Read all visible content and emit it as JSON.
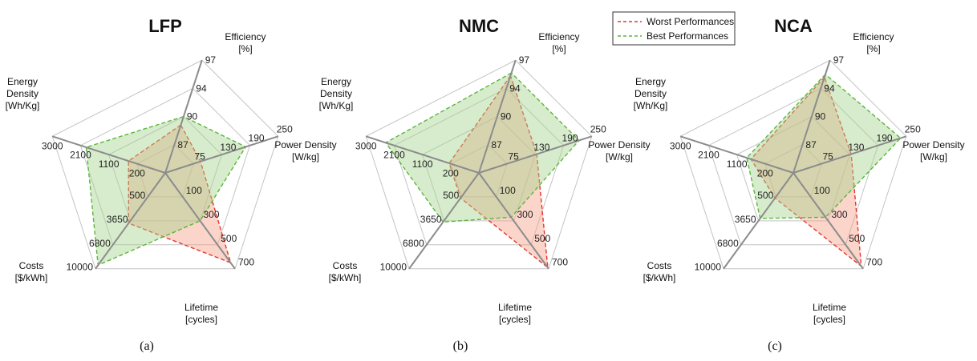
{
  "legend": {
    "worst_label": "Worst Performances",
    "best_label": "Best Performances",
    "worst_color": "#e8342c",
    "best_color": "#5ab63b",
    "worst_fill": "#f6a08a",
    "best_fill": "#a7d48e",
    "placement": "top-center"
  },
  "chart_data": [
    {
      "type": "radar",
      "title": "LFP",
      "caption": "(a)",
      "axes": [
        {
          "label": [
            "Efficiency",
            "[%]"
          ],
          "ticks": [
            "87",
            "90",
            "94",
            "97"
          ]
        },
        {
          "label": [
            "Power Density",
            "[W/kg]"
          ],
          "ticks": [
            "200",
            "1100",
            "2100",
            "3000"
          ]
        },
        {
          "label": [
            "Lifetime",
            "[cycles]"
          ],
          "ticks": [
            "500",
            "3650",
            "6800",
            "10000"
          ]
        },
        {
          "label": [
            "Costs",
            "[$/kWh]"
          ],
          "ticks": [
            "100",
            "300",
            "500",
            "700"
          ]
        },
        {
          "label": [
            "Energy",
            "Density",
            "[Wh/Kg]"
          ],
          "ticks": [
            "75",
            "130",
            "190",
            "250"
          ]
        }
      ],
      "series": [
        {
          "name": "Worst Performances",
          "levels": [
            1.7,
            1.3,
            2.1,
            3.75,
            1.25
          ]
        },
        {
          "name": "Best Performances",
          "levels": [
            2.0,
            2.8,
            3.85,
            2.0,
            2.85
          ]
        }
      ]
    },
    {
      "type": "radar",
      "title": "NMC",
      "caption": "(b)",
      "axes": [
        {
          "label": [
            "Efficiency",
            "[%]"
          ],
          "ticks": [
            "87",
            "90",
            "94",
            "97"
          ]
        },
        {
          "label": [
            "Power Density",
            "[W/kg]"
          ],
          "ticks": [
            "200",
            "1100",
            "2100",
            "3000"
          ]
        },
        {
          "label": [
            "Lifetime",
            "[cycles]"
          ],
          "ticks": [
            "500",
            "3650",
            "6800",
            "10000"
          ]
        },
        {
          "label": [
            "Costs",
            "[$/kWh]"
          ],
          "ticks": [
            "100",
            "300",
            "500",
            "700"
          ]
        },
        {
          "label": [
            "Energy",
            "Density",
            "[Wh/Kg]"
          ],
          "ticks": [
            "75",
            "130",
            "190",
            "250"
          ]
        }
      ],
      "series": [
        {
          "name": "Worst Performances",
          "levels": [
            3.45,
            1.05,
            1.05,
            3.95,
            2.05
          ]
        },
        {
          "name": "Best Performances",
          "levels": [
            3.55,
            3.3,
            2.05,
            1.85,
            3.55
          ]
        }
      ]
    },
    {
      "type": "radar",
      "title": "NCA",
      "caption": "(c)",
      "axes": [
        {
          "label": [
            "Efficiency",
            "[%]"
          ],
          "ticks": [
            "87",
            "90",
            "94",
            "97"
          ]
        },
        {
          "label": [
            "Power Density",
            "[W/kg]"
          ],
          "ticks": [
            "200",
            "1100",
            "2100",
            "3000"
          ]
        },
        {
          "label": [
            "Lifetime",
            "[cycles]"
          ],
          "ticks": [
            "500",
            "3650",
            "6800",
            "10000"
          ]
        },
        {
          "label": [
            "Costs",
            "[$/kWh]"
          ],
          "ticks": [
            "100",
            "300",
            "500",
            "700"
          ]
        },
        {
          "label": [
            "Energy",
            "Density",
            "[Wh/Kg]"
          ],
          "ticks": [
            "75",
            "130",
            "190",
            "250"
          ]
        }
      ],
      "series": [
        {
          "name": "Worst Performances",
          "levels": [
            3.4,
            1.5,
            1.05,
            3.9,
            2.05
          ]
        },
        {
          "name": "Best Performances",
          "levels": [
            3.5,
            1.65,
            1.9,
            1.85,
            3.8
          ]
        }
      ]
    }
  ]
}
